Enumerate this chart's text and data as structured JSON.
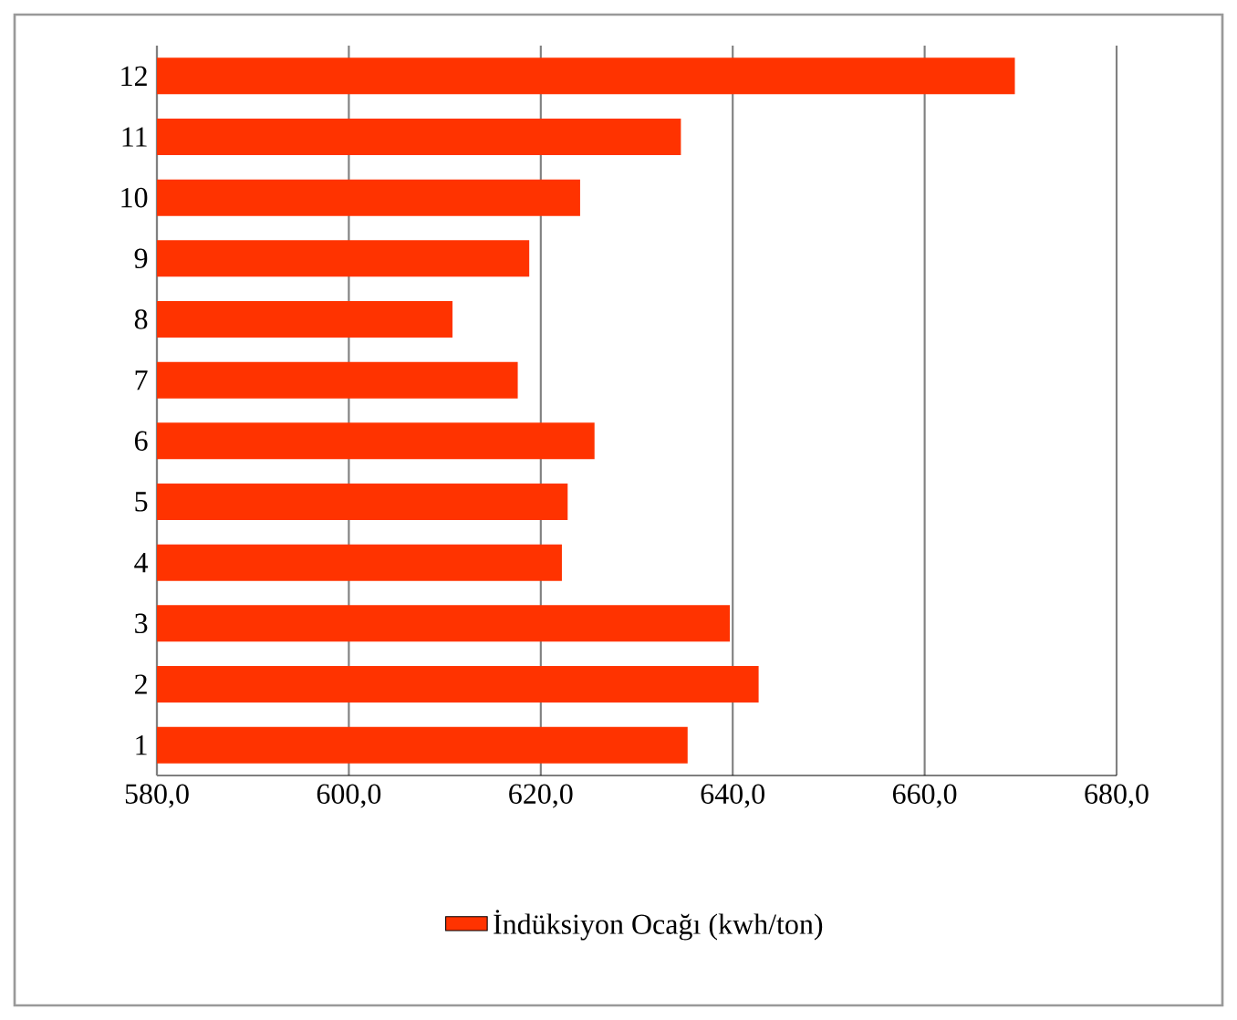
{
  "chart_data": {
    "type": "bar",
    "orientation": "horizontal",
    "categories": [
      "12",
      "11",
      "10",
      "9",
      "8",
      "7",
      "6",
      "5",
      "4",
      "3",
      "2",
      "1"
    ],
    "series": [
      {
        "name": "İndüksiyon Ocağı (kwh/ton)",
        "color": "#ff3300",
        "values": [
          669.4,
          634.6,
          624.1,
          618.8,
          610.8,
          617.6,
          625.6,
          622.8,
          622.2,
          639.7,
          642.7,
          635.3
        ]
      }
    ],
    "xlim": [
      580,
      680
    ],
    "xticks": [
      {
        "value": 580,
        "label": "580,0"
      },
      {
        "value": 600,
        "label": "600,0"
      },
      {
        "value": 620,
        "label": "620,0"
      },
      {
        "value": 640,
        "label": "640,0"
      },
      {
        "value": 660,
        "label": "660,0"
      },
      {
        "value": 680,
        "label": "680,0"
      }
    ],
    "grid": "x",
    "legend": "bottom"
  }
}
